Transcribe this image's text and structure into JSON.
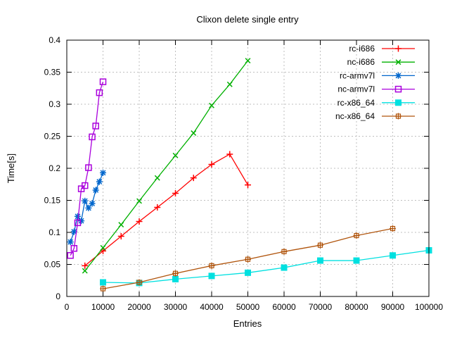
{
  "title": "Clixon delete single entry",
  "axes": {
    "xlabel": "Entries",
    "ylabel": "Time[s]"
  },
  "chart_data": {
    "type": "line",
    "title": "Clixon delete single entry",
    "xlabel": "Entries",
    "ylabel": "Time[s]",
    "xlim": [
      0,
      100000
    ],
    "ylim": [
      0,
      0.4
    ],
    "grid": true,
    "legend_position": "top-right-inside",
    "x_ticks": [
      0,
      10000,
      20000,
      30000,
      40000,
      50000,
      60000,
      70000,
      80000,
      90000,
      100000
    ],
    "x_tick_labels": [
      "0",
      "10000",
      "20000",
      "30000",
      "40000",
      "50000",
      "60000",
      "70000",
      "80000",
      "90000",
      "100000"
    ],
    "y_ticks": [
      0,
      0.05,
      0.1,
      0.15,
      0.2,
      0.25,
      0.3,
      0.35,
      0.4
    ],
    "y_tick_labels": [
      "0",
      "0.05",
      "0.1",
      "0.15",
      "0.2",
      "0.25",
      "0.3",
      "0.35",
      "0.4"
    ],
    "colors": {
      "grid": "#bfbfbf",
      "border": "#000000"
    },
    "series": [
      {
        "name": "rc-i686",
        "color": "#ff0000",
        "marker": "plus",
        "x": [
          5000,
          10000,
          15000,
          20000,
          25000,
          30000,
          35000,
          40000,
          45000,
          50000
        ],
        "y": [
          0.048,
          0.071,
          0.094,
          0.117,
          0.139,
          0.161,
          0.185,
          0.206,
          0.222,
          0.174
        ]
      },
      {
        "name": "nc-i686",
        "color": "#00b000",
        "marker": "cross",
        "x": [
          5000,
          10000,
          15000,
          20000,
          25000,
          30000,
          35000,
          40000,
          45000,
          50000
        ],
        "y": [
          0.04,
          0.076,
          0.112,
          0.149,
          0.185,
          0.22,
          0.255,
          0.298,
          0.331,
          0.368
        ]
      },
      {
        "name": "rc-armv7l",
        "color": "#0066cc",
        "marker": "asterisk",
        "x": [
          1000,
          2000,
          3000,
          4000,
          5000,
          6000,
          7000,
          8000,
          9000,
          10000
        ],
        "y": [
          0.085,
          0.101,
          0.125,
          0.118,
          0.149,
          0.138,
          0.145,
          0.166,
          0.179,
          0.193
        ]
      },
      {
        "name": "nc-armv7l",
        "color": "#aa00dd",
        "marker": "square-open",
        "x": [
          1000,
          2000,
          3000,
          4000,
          5000,
          6000,
          7000,
          8000,
          9000,
          10000
        ],
        "y": [
          0.064,
          0.075,
          0.115,
          0.168,
          0.173,
          0.201,
          0.249,
          0.266,
          0.318,
          0.335
        ]
      },
      {
        "name": "rc-x86_64",
        "color": "#00e0e0",
        "marker": "square-filled",
        "x": [
          10000,
          20000,
          30000,
          40000,
          50000,
          60000,
          70000,
          80000,
          90000,
          100000
        ],
        "y": [
          0.022,
          0.021,
          0.027,
          0.032,
          0.037,
          0.045,
          0.056,
          0.056,
          0.064,
          0.072
        ]
      },
      {
        "name": "nc-x86_64",
        "color": "#b0540c",
        "marker": "square-plus",
        "x": [
          10000,
          20000,
          30000,
          40000,
          50000,
          60000,
          70000,
          80000,
          90000
        ],
        "y": [
          0.012,
          0.022,
          0.036,
          0.048,
          0.058,
          0.07,
          0.08,
          0.095,
          0.106
        ]
      }
    ]
  }
}
